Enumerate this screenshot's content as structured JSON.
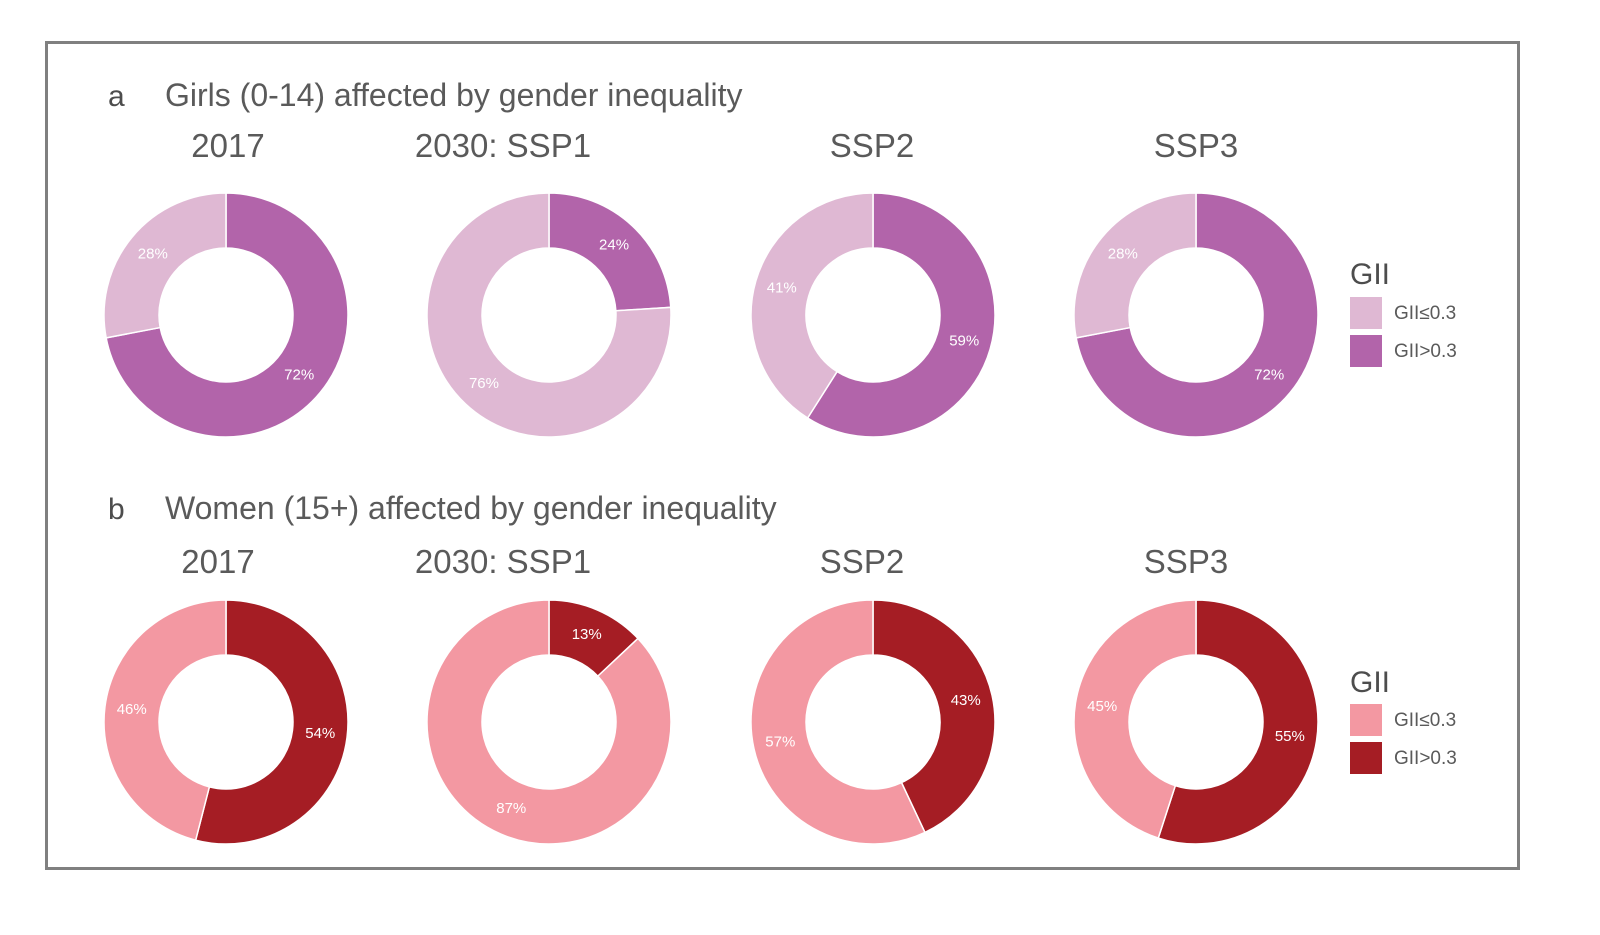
{
  "chart_data": [
    {
      "type": "pie",
      "panel": "a",
      "title": "Girls (0-14) affected by gender inequality",
      "legend": {
        "title": "GII",
        "items": [
          {
            "label": "GII≤0.3",
            "color": "#dfb8d3"
          },
          {
            "label": "GII>0.3",
            "color": "#b264aa"
          }
        ]
      },
      "donuts": [
        {
          "title": "2017",
          "slices": [
            {
              "category": "GII>0.3",
              "value": 72,
              "label": "72%"
            },
            {
              "category": "GII≤0.3",
              "value": 28,
              "label": "28%"
            }
          ]
        },
        {
          "title": "2030: SSP1",
          "slices": [
            {
              "category": "GII>0.3",
              "value": 24,
              "label": "24%"
            },
            {
              "category": "GII≤0.3",
              "value": 76,
              "label": "76%"
            }
          ]
        },
        {
          "title": "SSP2",
          "slices": [
            {
              "category": "GII>0.3",
              "value": 59,
              "label": "59%"
            },
            {
              "category": "GII≤0.3",
              "value": 41,
              "label": "41%"
            }
          ]
        },
        {
          "title": "SSP3",
          "slices": [
            {
              "category": "GII>0.3",
              "value": 72,
              "label": "72%"
            },
            {
              "category": "GII≤0.3",
              "value": 28,
              "label": "28%"
            }
          ]
        }
      ]
    },
    {
      "type": "pie",
      "panel": "b",
      "title": "Women (15+) affected by gender inequality",
      "legend": {
        "title": "GII",
        "items": [
          {
            "label": "GII≤0.3",
            "color": "#f398a2"
          },
          {
            "label": "GII>0.3",
            "color": "#a51d24"
          }
        ]
      },
      "donuts": [
        {
          "title": "2017",
          "slices": [
            {
              "category": "GII>0.3",
              "value": 54,
              "label": "54%"
            },
            {
              "category": "GII≤0.3",
              "value": 46,
              "label": "46%"
            }
          ]
        },
        {
          "title": "2030: SSP1",
          "slices": [
            {
              "category": "GII>0.3",
              "value": 13,
              "label": "13%"
            },
            {
              "category": "GII≤0.3",
              "value": 87,
              "label": "87%"
            }
          ]
        },
        {
          "title": "SSP2",
          "slices": [
            {
              "category": "GII>0.3",
              "value": 43,
              "label": "43%"
            },
            {
              "category": "GII≤0.3",
              "value": 57,
              "label": "57%"
            }
          ]
        },
        {
          "title": "SSP3",
          "slices": [
            {
              "category": "GII>0.3",
              "value": 55,
              "label": "55%"
            },
            {
              "category": "GII≤0.3",
              "value": 45,
              "label": "45%"
            }
          ]
        }
      ]
    }
  ]
}
